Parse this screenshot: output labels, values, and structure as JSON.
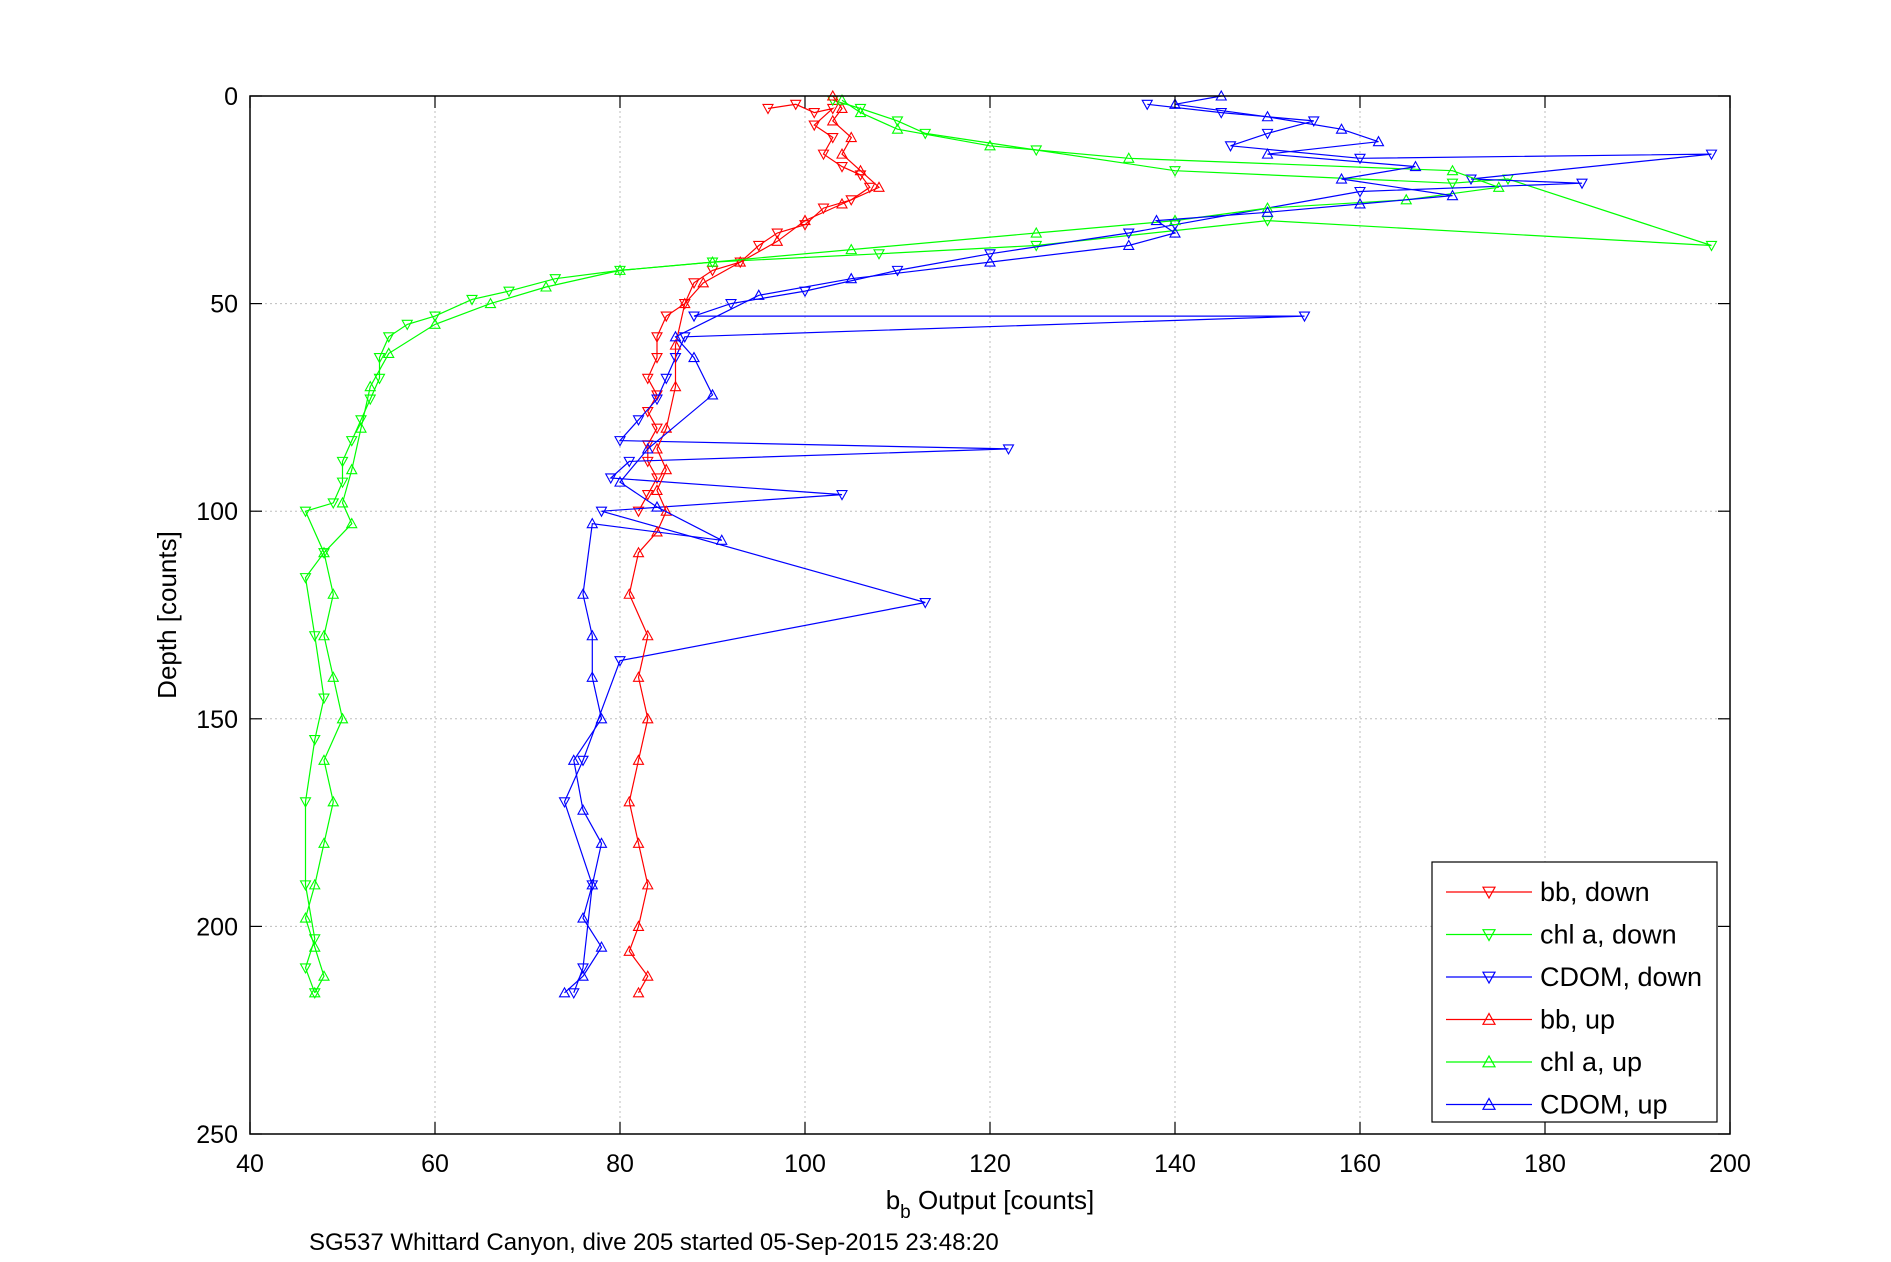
{
  "chart_data": {
    "type": "line",
    "title": "",
    "xlabel_main": "b",
    "xlabel_sub": "b",
    "xlabel_rest": " Output [counts]",
    "ylabel": "Depth [counts]",
    "caption": "SG537 Whittard Canyon, dive 205 started 05-Sep-2015 23:48:20",
    "xlim": [
      40,
      200
    ],
    "ylim": [
      0,
      250
    ],
    "y_reversed": true,
    "grid": true,
    "legend_position": "bottom-right",
    "x_ticks": [
      "40",
      "60",
      "80",
      "100",
      "120",
      "140",
      "160",
      "180",
      "200"
    ],
    "y_ticks": [
      "0",
      "50",
      "100",
      "150",
      "200",
      "250"
    ],
    "series": [
      {
        "name": "bb, down",
        "color": "#ff0000",
        "marker": "triangle-down",
        "points": [
          [
            96,
            3
          ],
          [
            99,
            2
          ],
          [
            101,
            4
          ],
          [
            103,
            3
          ],
          [
            101,
            7
          ],
          [
            103,
            10
          ],
          [
            102,
            14
          ],
          [
            104,
            17
          ],
          [
            106,
            19
          ],
          [
            107,
            22
          ],
          [
            105,
            25
          ],
          [
            102,
            27
          ],
          [
            100,
            31
          ],
          [
            97,
            33
          ],
          [
            95,
            36
          ],
          [
            93,
            40
          ],
          [
            90,
            42
          ],
          [
            88,
            45
          ],
          [
            87,
            50
          ],
          [
            85,
            53
          ],
          [
            84,
            58
          ],
          [
            84,
            63
          ],
          [
            83,
            68
          ],
          [
            84,
            72
          ],
          [
            83,
            76
          ],
          [
            84,
            80
          ],
          [
            83,
            84
          ],
          [
            83,
            88
          ],
          [
            84,
            92
          ],
          [
            83,
            96
          ],
          [
            82,
            100
          ]
        ]
      },
      {
        "name": "chl a, down",
        "color": "#00ff00",
        "marker": "triangle-down",
        "points": [
          [
            103,
            1
          ],
          [
            106,
            3
          ],
          [
            110,
            6
          ],
          [
            113,
            9
          ],
          [
            125,
            13
          ],
          [
            140,
            18
          ],
          [
            170,
            21
          ],
          [
            176,
            20
          ],
          [
            198,
            36
          ],
          [
            150,
            30
          ],
          [
            125,
            36
          ],
          [
            108,
            38
          ],
          [
            90,
            40
          ],
          [
            80,
            42
          ],
          [
            73,
            44
          ],
          [
            68,
            47
          ],
          [
            64,
            49
          ],
          [
            60,
            53
          ],
          [
            57,
            55
          ],
          [
            55,
            58
          ],
          [
            54,
            63
          ],
          [
            54,
            68
          ],
          [
            53,
            73
          ],
          [
            52,
            78
          ],
          [
            51,
            83
          ],
          [
            50,
            88
          ],
          [
            50,
            93
          ],
          [
            49,
            98
          ],
          [
            46,
            100
          ],
          [
            48,
            110
          ],
          [
            46,
            116
          ],
          [
            47,
            130
          ],
          [
            48,
            145
          ],
          [
            47,
            155
          ],
          [
            46,
            170
          ],
          [
            46,
            190
          ],
          [
            47,
            203
          ],
          [
            46,
            210
          ],
          [
            47,
            216
          ]
        ]
      },
      {
        "name": "CDOM, down",
        "color": "#0000ff",
        "marker": "triangle-down",
        "points": [
          [
            137,
            2
          ],
          [
            145,
            4
          ],
          [
            155,
            6
          ],
          [
            150,
            9
          ],
          [
            146,
            12
          ],
          [
            160,
            15
          ],
          [
            198,
            14
          ],
          [
            172,
            20
          ],
          [
            184,
            21
          ],
          [
            160,
            23
          ],
          [
            140,
            31
          ],
          [
            135,
            33
          ],
          [
            120,
            38
          ],
          [
            110,
            42
          ],
          [
            100,
            47
          ],
          [
            92,
            50
          ],
          [
            88,
            53
          ],
          [
            154,
            53
          ],
          [
            87,
            58
          ],
          [
            86,
            63
          ],
          [
            85,
            68
          ],
          [
            84,
            73
          ],
          [
            82,
            78
          ],
          [
            80,
            83
          ],
          [
            122,
            85
          ],
          [
            81,
            88
          ],
          [
            79,
            92
          ],
          [
            104,
            96
          ],
          [
            78,
            100
          ],
          [
            113,
            122
          ],
          [
            80,
            136
          ],
          [
            76,
            160
          ],
          [
            74,
            170
          ],
          [
            77,
            190
          ],
          [
            76,
            210
          ],
          [
            75,
            216
          ]
        ]
      },
      {
        "name": "bb, up",
        "color": "#ff0000",
        "marker": "triangle-up",
        "points": [
          [
            82,
            216
          ],
          [
            83,
            212
          ],
          [
            81,
            206
          ],
          [
            82,
            200
          ],
          [
            83,
            190
          ],
          [
            82,
            180
          ],
          [
            81,
            170
          ],
          [
            82,
            160
          ],
          [
            83,
            150
          ],
          [
            82,
            140
          ],
          [
            83,
            130
          ],
          [
            81,
            120
          ],
          [
            82,
            110
          ],
          [
            84,
            105
          ],
          [
            85,
            100
          ],
          [
            84,
            95
          ],
          [
            85,
            90
          ],
          [
            84,
            85
          ],
          [
            85,
            80
          ],
          [
            86,
            70
          ],
          [
            86,
            60
          ],
          [
            87,
            50
          ],
          [
            89,
            45
          ],
          [
            93,
            40
          ],
          [
            97,
            35
          ],
          [
            100,
            30
          ],
          [
            104,
            26
          ],
          [
            108,
            22
          ],
          [
            106,
            18
          ],
          [
            104,
            14
          ],
          [
            105,
            10
          ],
          [
            103,
            6
          ],
          [
            104,
            3
          ],
          [
            103,
            0
          ]
        ]
      },
      {
        "name": "chl a, up",
        "color": "#00ff00",
        "marker": "triangle-up",
        "points": [
          [
            47,
            216
          ],
          [
            48,
            212
          ],
          [
            47,
            205
          ],
          [
            46,
            198
          ],
          [
            47,
            190
          ],
          [
            48,
            180
          ],
          [
            49,
            170
          ],
          [
            48,
            160
          ],
          [
            50,
            150
          ],
          [
            49,
            140
          ],
          [
            48,
            130
          ],
          [
            49,
            120
          ],
          [
            48,
            110
          ],
          [
            51,
            103
          ],
          [
            50,
            98
          ],
          [
            51,
            90
          ],
          [
            52,
            80
          ],
          [
            53,
            70
          ],
          [
            55,
            62
          ],
          [
            60,
            55
          ],
          [
            66,
            50
          ],
          [
            72,
            46
          ],
          [
            80,
            42
          ],
          [
            90,
            40
          ],
          [
            105,
            37
          ],
          [
            125,
            33
          ],
          [
            140,
            30
          ],
          [
            150,
            27
          ],
          [
            165,
            25
          ],
          [
            175,
            22
          ],
          [
            170,
            18
          ],
          [
            135,
            15
          ],
          [
            120,
            12
          ],
          [
            110,
            8
          ],
          [
            106,
            4
          ],
          [
            104,
            1
          ]
        ]
      },
      {
        "name": "CDOM, up",
        "color": "#0000ff",
        "marker": "triangle-up",
        "points": [
          [
            74,
            216
          ],
          [
            76,
            212
          ],
          [
            78,
            205
          ],
          [
            76,
            198
          ],
          [
            77,
            190
          ],
          [
            78,
            180
          ],
          [
            76,
            172
          ],
          [
            75,
            160
          ],
          [
            78,
            150
          ],
          [
            77,
            140
          ],
          [
            77,
            130
          ],
          [
            76,
            120
          ],
          [
            77,
            103
          ],
          [
            91,
            107
          ],
          [
            84,
            99
          ],
          [
            80,
            93
          ],
          [
            83,
            85
          ],
          [
            90,
            72
          ],
          [
            88,
            63
          ],
          [
            86,
            58
          ],
          [
            95,
            48
          ],
          [
            105,
            44
          ],
          [
            120,
            40
          ],
          [
            135,
            36
          ],
          [
            140,
            33
          ],
          [
            138,
            30
          ],
          [
            150,
            28
          ],
          [
            160,
            26
          ],
          [
            170,
            24
          ],
          [
            158,
            20
          ],
          [
            166,
            17
          ],
          [
            150,
            14
          ],
          [
            162,
            11
          ],
          [
            158,
            8
          ],
          [
            150,
            5
          ],
          [
            140,
            2
          ],
          [
            145,
            0
          ]
        ]
      }
    ]
  }
}
